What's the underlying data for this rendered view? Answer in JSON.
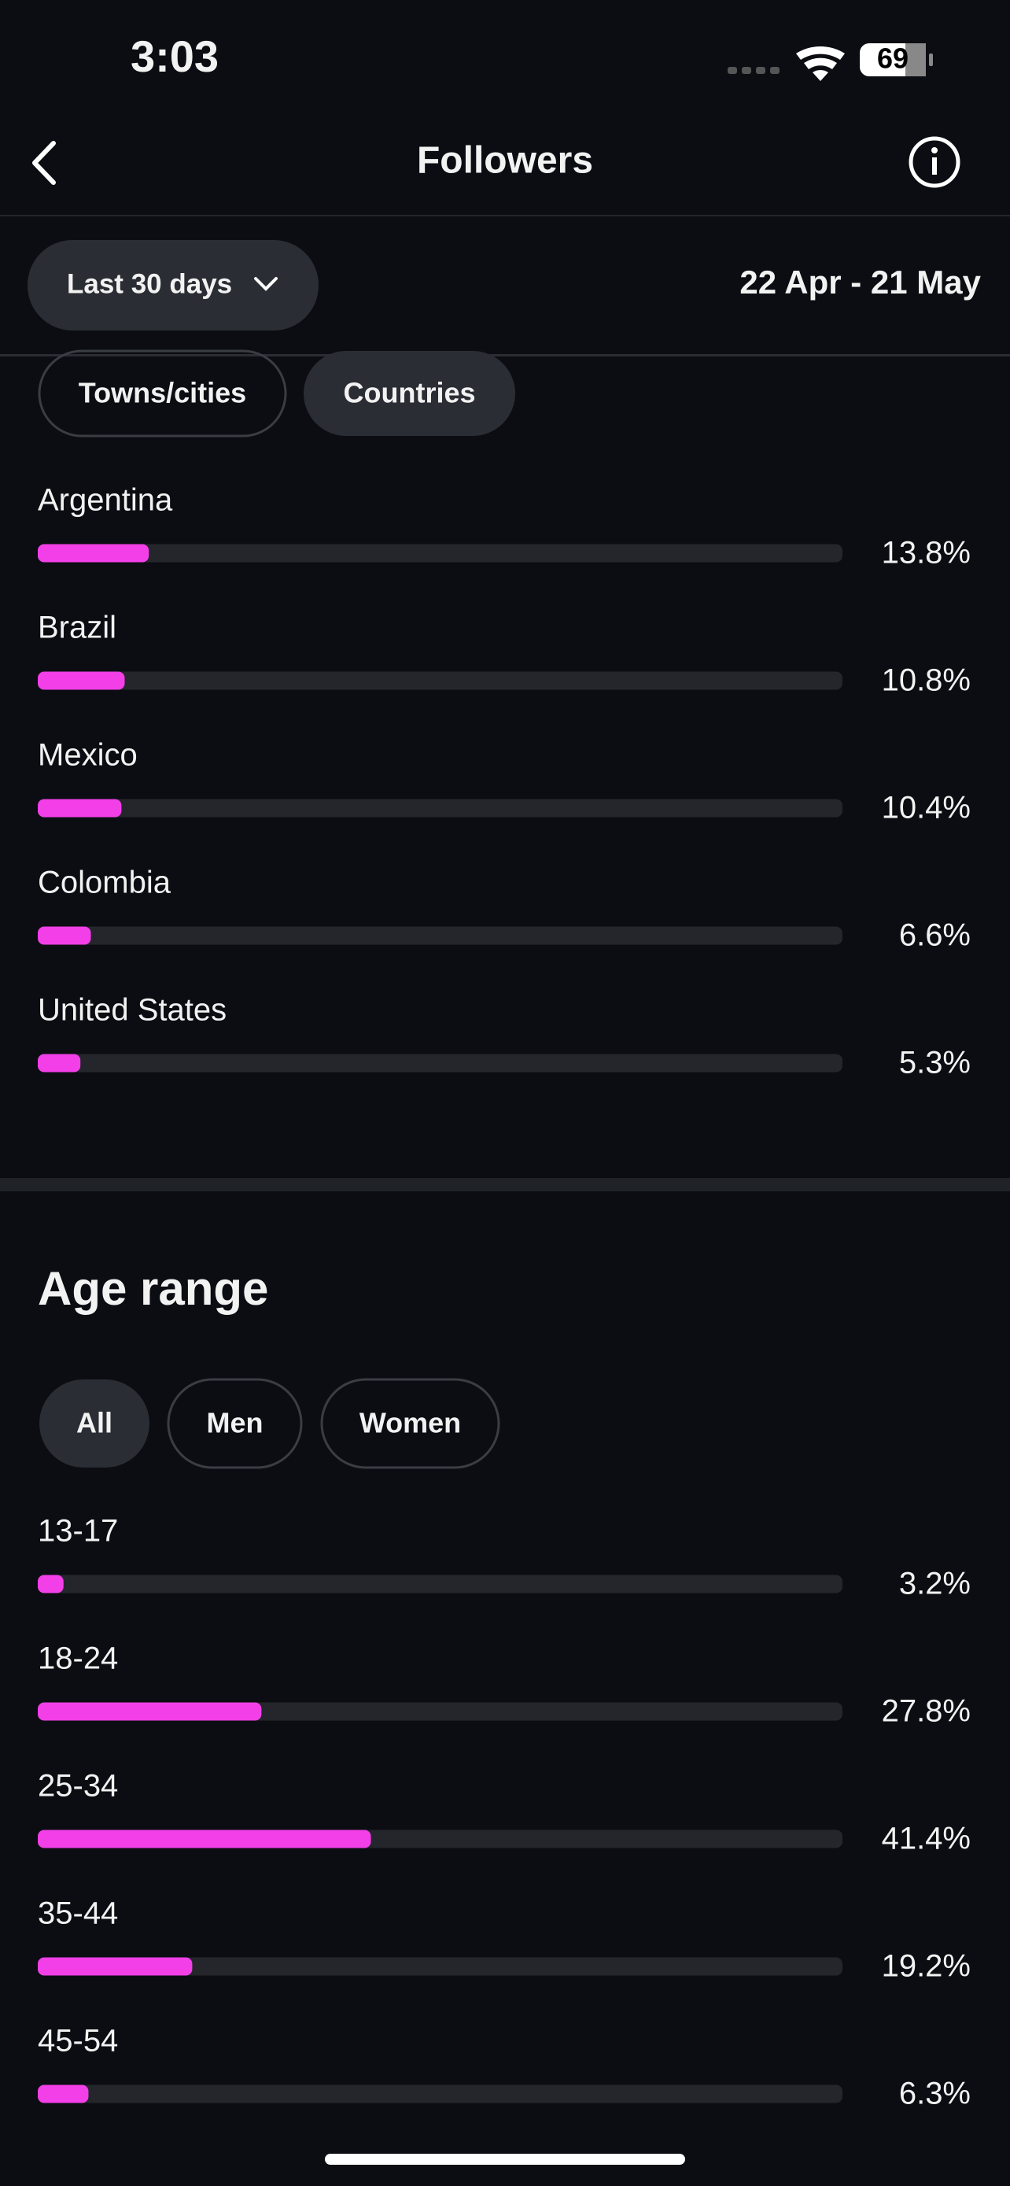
{
  "status_bar": {
    "time": "3:03",
    "battery": "69"
  },
  "header": {
    "title": "Followers"
  },
  "filter": {
    "period": "Last 30 days",
    "date_range": "22 Apr - 21 May"
  },
  "locations": {
    "tabs": [
      "Towns/cities",
      "Countries"
    ],
    "scale": [
      0,
      100
    ],
    "bar_color": "#f23fe8",
    "items": [
      {
        "name": "Argentina",
        "value": 13.8,
        "label": "13.8%"
      },
      {
        "name": "Brazil",
        "value": 10.8,
        "label": "10.8%"
      },
      {
        "name": "Mexico",
        "value": 10.4,
        "label": "10.4%"
      },
      {
        "name": "Colombia",
        "value": 6.6,
        "label": "6.6%"
      },
      {
        "name": "United States",
        "value": 5.3,
        "label": "5.3%"
      }
    ]
  },
  "age_range": {
    "title": "Age range",
    "tabs": [
      "All",
      "Men",
      "Women"
    ],
    "scale": [
      0,
      100
    ],
    "bar_color": "#f23fe8",
    "items": [
      {
        "name": "13-17",
        "value": 3.2,
        "label": "3.2%"
      },
      {
        "name": "18-24",
        "value": 27.8,
        "label": "27.8%"
      },
      {
        "name": "25-34",
        "value": 41.4,
        "label": "41.4%"
      },
      {
        "name": "35-44",
        "value": 19.2,
        "label": "19.2%"
      },
      {
        "name": "45-54",
        "value": 6.3,
        "label": "6.3%"
      }
    ]
  }
}
